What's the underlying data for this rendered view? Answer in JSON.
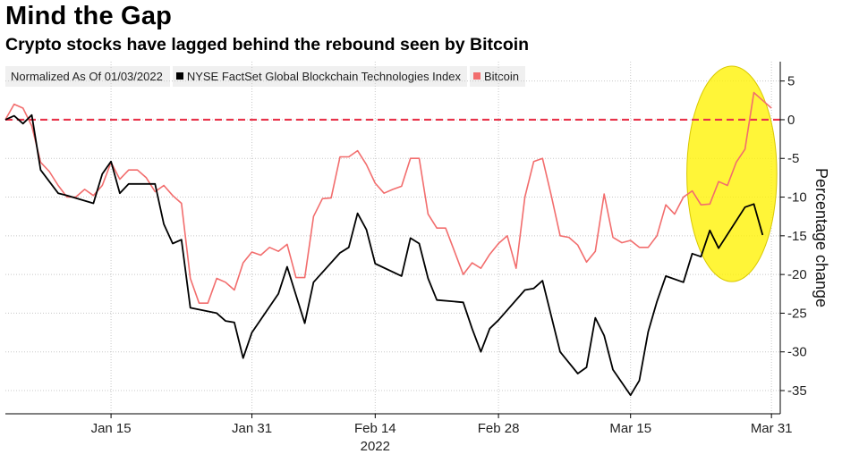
{
  "header": {
    "title": "Mind the Gap",
    "subtitle": "Crypto stocks have lagged behind the rebound seen by Bitcoin"
  },
  "legend": {
    "note": "Normalized As Of 01/03/2022",
    "items": [
      {
        "label": "NYSE FactSet Global Blockchain Technologies Index",
        "color": "#000000"
      },
      {
        "label": "Bitcoin",
        "color": "#f26d6d"
      }
    ]
  },
  "colors": {
    "blockchain": "#000000",
    "bitcoin": "#f26d6d",
    "zero_line": "#e8334a",
    "highlight": "#fff200",
    "grid": "#c8c8c8"
  },
  "chart_data": {
    "type": "line",
    "title": "Mind the Gap",
    "subtitle": "Crypto stocks have lagged behind the rebound seen by Bitcoin",
    "xlabel": "2022",
    "ylabel": "Percentage change",
    "x_range": [
      "2022-01-03",
      "2022-04-01"
    ],
    "ylim": [
      -38,
      7.5
    ],
    "y_ticks": [
      5,
      0,
      -5,
      -10,
      -15,
      -20,
      -25,
      -30,
      -35
    ],
    "x_ticks": [
      {
        "label": "Jan 15",
        "date": "2022-01-15"
      },
      {
        "label": "Jan 31",
        "date": "2022-01-31"
      },
      {
        "label": "Feb 14",
        "date": "2022-02-14"
      },
      {
        "label": "Feb 28",
        "date": "2022-02-28"
      },
      {
        "label": "Mar 15",
        "date": "2022-03-15"
      },
      {
        "label": "Mar 31",
        "date": "2022-03-31"
      }
    ],
    "reference_line": {
      "y": 0,
      "style": "dashed"
    },
    "annotations": [
      {
        "type": "ellipse-highlight",
        "x_from": "2022-03-22",
        "x_to": "2022-03-31",
        "y_from": -20,
        "y_to": 6
      }
    ],
    "series": [
      {
        "name": "NYSE FactSet Global Blockchain Technologies Index",
        "color": "#000000",
        "points": [
          [
            "2022-01-03",
            0
          ],
          [
            "2022-01-04",
            0.5
          ],
          [
            "2022-01-05",
            -0.5
          ],
          [
            "2022-01-06",
            0.6
          ],
          [
            "2022-01-07",
            -6.5
          ],
          [
            "2022-01-09",
            -9.5
          ],
          [
            "2022-01-10",
            -9.8
          ],
          [
            "2022-01-13",
            -10.8
          ],
          [
            "2022-01-14",
            -7
          ],
          [
            "2022-01-15",
            -5.4
          ],
          [
            "2022-01-16",
            -9.5
          ],
          [
            "2022-01-17",
            -8.3
          ],
          [
            "2022-01-20",
            -8.3
          ],
          [
            "2022-01-21",
            -13.5
          ],
          [
            "2022-01-22",
            -16
          ],
          [
            "2022-01-23",
            -15.5
          ],
          [
            "2022-01-24",
            -24.3
          ],
          [
            "2022-01-27",
            -25
          ],
          [
            "2022-01-28",
            -26
          ],
          [
            "2022-01-29",
            -26.2
          ],
          [
            "2022-01-30",
            -30.8
          ],
          [
            "2022-01-31",
            -27.5
          ],
          [
            "2022-02-03",
            -22.5
          ],
          [
            "2022-02-04",
            -19
          ],
          [
            "2022-02-06",
            -26.3
          ],
          [
            "2022-02-07",
            -21
          ],
          [
            "2022-02-10",
            -17.2
          ],
          [
            "2022-02-11",
            -16.5
          ],
          [
            "2022-02-12",
            -12.1
          ],
          [
            "2022-02-13",
            -14.2
          ],
          [
            "2022-02-14",
            -18.6
          ],
          [
            "2022-02-17",
            -20.2
          ],
          [
            "2022-02-18",
            -15.3
          ],
          [
            "2022-02-19",
            -16
          ],
          [
            "2022-02-20",
            -20.5
          ],
          [
            "2022-02-21",
            -23.3
          ],
          [
            "2022-02-24",
            -23.6
          ],
          [
            "2022-02-25",
            -27
          ],
          [
            "2022-02-26",
            -30
          ],
          [
            "2022-02-27",
            -27
          ],
          [
            "2022-02-28",
            -25.9
          ],
          [
            "2022-03-03",
            -22
          ],
          [
            "2022-03-04",
            -21.8
          ],
          [
            "2022-03-05",
            -20.8
          ],
          [
            "2022-03-07",
            -30
          ],
          [
            "2022-03-09",
            -32.8
          ],
          [
            "2022-03-10",
            -32
          ],
          [
            "2022-03-11",
            -25.6
          ],
          [
            "2022-03-12",
            -27.9
          ],
          [
            "2022-03-13",
            -32.3
          ],
          [
            "2022-03-15",
            -35.6
          ],
          [
            "2022-03-16",
            -33.7
          ],
          [
            "2022-03-17",
            -27.4
          ],
          [
            "2022-03-18",
            -23.5
          ],
          [
            "2022-03-19",
            -20.2
          ],
          [
            "2022-03-21",
            -21
          ],
          [
            "2022-03-22",
            -17.3
          ],
          [
            "2022-03-23",
            -17.7
          ],
          [
            "2022-03-24",
            -14.3
          ],
          [
            "2022-03-25",
            -16.6
          ],
          [
            "2022-03-28",
            -11.3
          ],
          [
            "2022-03-29",
            -10.9
          ],
          [
            "2022-03-30",
            -14.9
          ]
        ]
      },
      {
        "name": "Bitcoin",
        "color": "#f26d6d",
        "points": [
          [
            "2022-01-03",
            0
          ],
          [
            "2022-01-04",
            2
          ],
          [
            "2022-01-05",
            1.5
          ],
          [
            "2022-01-06",
            -0.8
          ],
          [
            "2022-01-07",
            -5.5
          ],
          [
            "2022-01-08",
            -6.7
          ],
          [
            "2022-01-09",
            -8.5
          ],
          [
            "2022-01-10",
            -10
          ],
          [
            "2022-01-11",
            -10
          ],
          [
            "2022-01-12",
            -9
          ],
          [
            "2022-01-13",
            -9.8
          ],
          [
            "2022-01-14",
            -8.5
          ],
          [
            "2022-01-15",
            -5.5
          ],
          [
            "2022-01-16",
            -7.7
          ],
          [
            "2022-01-17",
            -6.5
          ],
          [
            "2022-01-18",
            -6.5
          ],
          [
            "2022-01-19",
            -7.5
          ],
          [
            "2022-01-20",
            -9.3
          ],
          [
            "2022-01-21",
            -8.5
          ],
          [
            "2022-01-22",
            -9.8
          ],
          [
            "2022-01-23",
            -10.8
          ],
          [
            "2022-01-24",
            -20.5
          ],
          [
            "2022-01-25",
            -23.7
          ],
          [
            "2022-01-26",
            -23.7
          ],
          [
            "2022-01-27",
            -20.5
          ],
          [
            "2022-01-28",
            -21
          ],
          [
            "2022-01-29",
            -22
          ],
          [
            "2022-01-30",
            -18.5
          ],
          [
            "2022-01-31",
            -17.1
          ],
          [
            "2022-02-01",
            -17.5
          ],
          [
            "2022-02-02",
            -16.5
          ],
          [
            "2022-02-03",
            -17
          ],
          [
            "2022-02-04",
            -16.1
          ],
          [
            "2022-02-05",
            -20.4
          ],
          [
            "2022-02-06",
            -20.4
          ],
          [
            "2022-02-07",
            -12.5
          ],
          [
            "2022-02-08",
            -10.2
          ],
          [
            "2022-02-09",
            -10.1
          ],
          [
            "2022-02-10",
            -4.8
          ],
          [
            "2022-02-11",
            -4.8
          ],
          [
            "2022-02-12",
            -4
          ],
          [
            "2022-02-13",
            -5.8
          ],
          [
            "2022-02-14",
            -8.2
          ],
          [
            "2022-02-15",
            -9.5
          ],
          [
            "2022-02-16",
            -9
          ],
          [
            "2022-02-17",
            -8.6
          ],
          [
            "2022-02-18",
            -5
          ],
          [
            "2022-02-19",
            -5
          ],
          [
            "2022-02-20",
            -12.2
          ],
          [
            "2022-02-21",
            -14
          ],
          [
            "2022-02-22",
            -14
          ],
          [
            "2022-02-23",
            -17
          ],
          [
            "2022-02-24",
            -20
          ],
          [
            "2022-02-25",
            -18.5
          ],
          [
            "2022-02-26",
            -19.2
          ],
          [
            "2022-02-27",
            -17.4
          ],
          [
            "2022-02-28",
            -16
          ],
          [
            "2022-03-01",
            -15
          ],
          [
            "2022-03-02",
            -19.2
          ],
          [
            "2022-03-03",
            -10
          ],
          [
            "2022-03-04",
            -5.4
          ],
          [
            "2022-03-05",
            -5
          ],
          [
            "2022-03-06",
            -9.8
          ],
          [
            "2022-03-07",
            -15
          ],
          [
            "2022-03-08",
            -15.2
          ],
          [
            "2022-03-09",
            -16.2
          ],
          [
            "2022-03-10",
            -18.4
          ],
          [
            "2022-03-11",
            -17
          ],
          [
            "2022-03-12",
            -9.6
          ],
          [
            "2022-03-13",
            -15.2
          ],
          [
            "2022-03-14",
            -15.9
          ],
          [
            "2022-03-15",
            -15.6
          ],
          [
            "2022-03-16",
            -16.5
          ],
          [
            "2022-03-17",
            -16.5
          ],
          [
            "2022-03-18",
            -15
          ],
          [
            "2022-03-19",
            -11
          ],
          [
            "2022-03-20",
            -12.2
          ],
          [
            "2022-03-21",
            -10
          ],
          [
            "2022-03-22",
            -9.2
          ],
          [
            "2022-03-23",
            -11
          ],
          [
            "2022-03-24",
            -10.9
          ],
          [
            "2022-03-25",
            -8
          ],
          [
            "2022-03-26",
            -8.5
          ],
          [
            "2022-03-27",
            -5.5
          ],
          [
            "2022-03-28",
            -3.8
          ],
          [
            "2022-03-29",
            3.5
          ],
          [
            "2022-03-30",
            2.5
          ],
          [
            "2022-03-31",
            1.5
          ]
        ]
      }
    ]
  }
}
